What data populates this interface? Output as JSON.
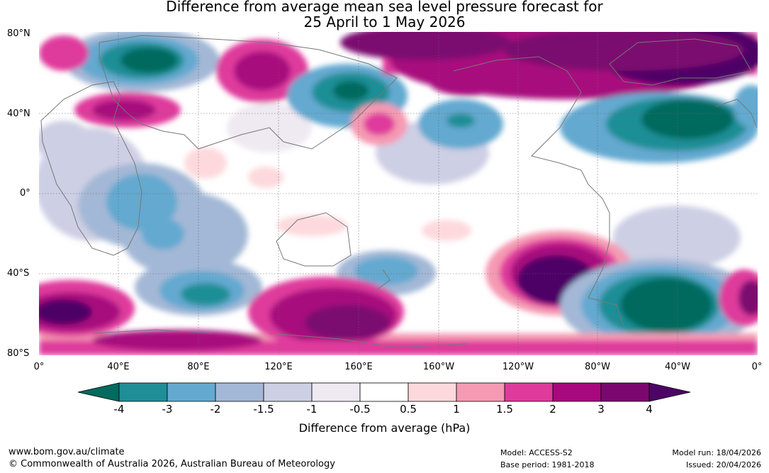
{
  "title": {
    "line1": "Difference from average mean sea level pressure forecast for",
    "line2": "25 April to 1 May 2026"
  },
  "map": {
    "lat_labels": [
      "80°N",
      "40°N",
      "0°",
      "40°S",
      "80°S"
    ],
    "lon_labels": [
      "0°",
      "40°E",
      "80°E",
      "120°E",
      "160°E",
      "160°W",
      "120°W",
      "80°W",
      "40°W",
      "0°"
    ]
  },
  "legend": {
    "title": "Difference from average (hPa)",
    "ticks": [
      "-4",
      "-3",
      "-2",
      "-1.5",
      "-1",
      "-0.5",
      "0.5",
      "1",
      "1.5",
      "2",
      "3",
      "4"
    ],
    "colors": [
      "#006b5e",
      "#1f8e96",
      "#64a9d0",
      "#a3b8d6",
      "#cdcfe4",
      "#efe9f2",
      "#ffffff",
      "#fdd9dd",
      "#f59ab3",
      "#df3a9c",
      "#a8097e",
      "#7b0870",
      "#4d0466"
    ]
  },
  "footer": {
    "website": "www.bom.gov.au/climate",
    "copyright": "© Commonwealth of Australia 2026, Australian Bureau of Meteorology",
    "model": "Model: ACCESS-S2",
    "base_period": "Base period: 1981-2018",
    "model_run": "Model run: 18/04/2026",
    "issued": "Issued: 20/04/2026"
  }
}
